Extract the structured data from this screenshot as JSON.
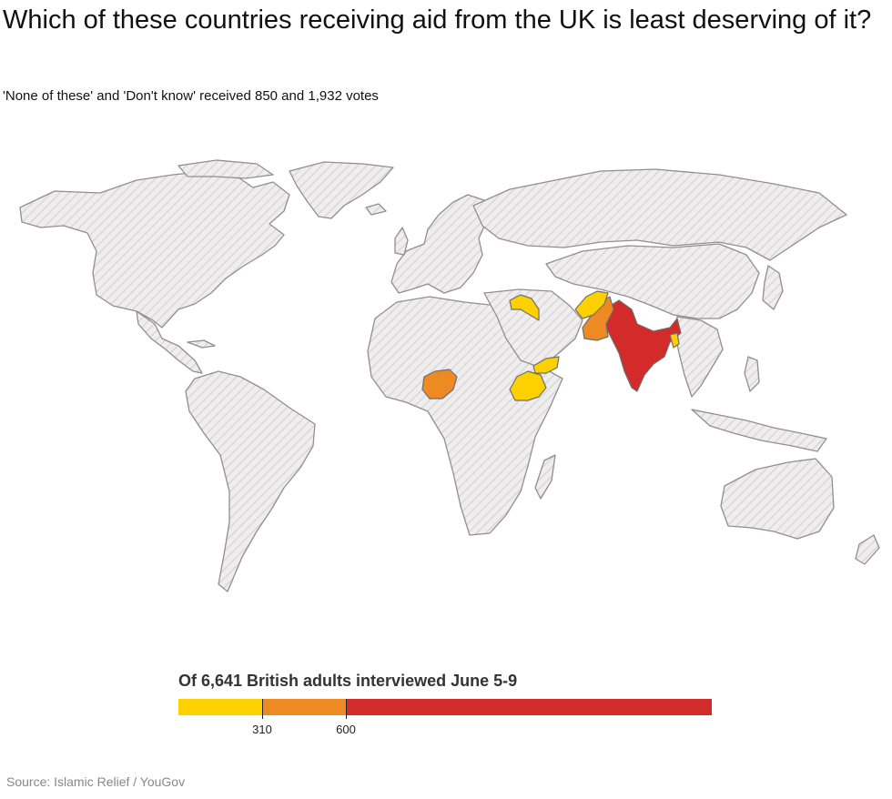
{
  "title": "Which of these countries receiving aid from the UK is least deserving of it?",
  "subtitle": "'None of these' and 'Don't know' received 850 and 1,932 votes",
  "legend": {
    "title": "Of 6,641 British adults interviewed June 5-9",
    "bins": [
      {
        "from": 0,
        "to": 310,
        "color": "#fdd100"
      },
      {
        "from": 310,
        "to": 600,
        "color": "#ee8a23"
      },
      {
        "from": 600,
        "to": 1900,
        "color": "#d32a2a"
      }
    ],
    "ticks": [
      "310",
      "600"
    ]
  },
  "map_data": {
    "no_data_fill": "hatched light grey",
    "highlighted_countries": [
      {
        "country": "India",
        "bin": "600+",
        "color": "#d32a2a"
      },
      {
        "country": "Pakistan",
        "bin": "310-600",
        "color": "#ee8a23"
      },
      {
        "country": "Nigeria",
        "bin": "310-600",
        "color": "#ee8a23"
      },
      {
        "country": "Afghanistan",
        "bin": "0-310",
        "color": "#fdd100"
      },
      {
        "country": "Syria",
        "bin": "0-310",
        "color": "#fdd100"
      },
      {
        "country": "Yemen",
        "bin": "0-310",
        "color": "#fdd100"
      },
      {
        "country": "Ethiopia",
        "bin": "0-310",
        "color": "#fdd100"
      },
      {
        "country": "Bangladesh",
        "bin": "0-310",
        "color": "#fdd100"
      }
    ]
  },
  "source": "Source: Islamic Relief / YouGov"
}
